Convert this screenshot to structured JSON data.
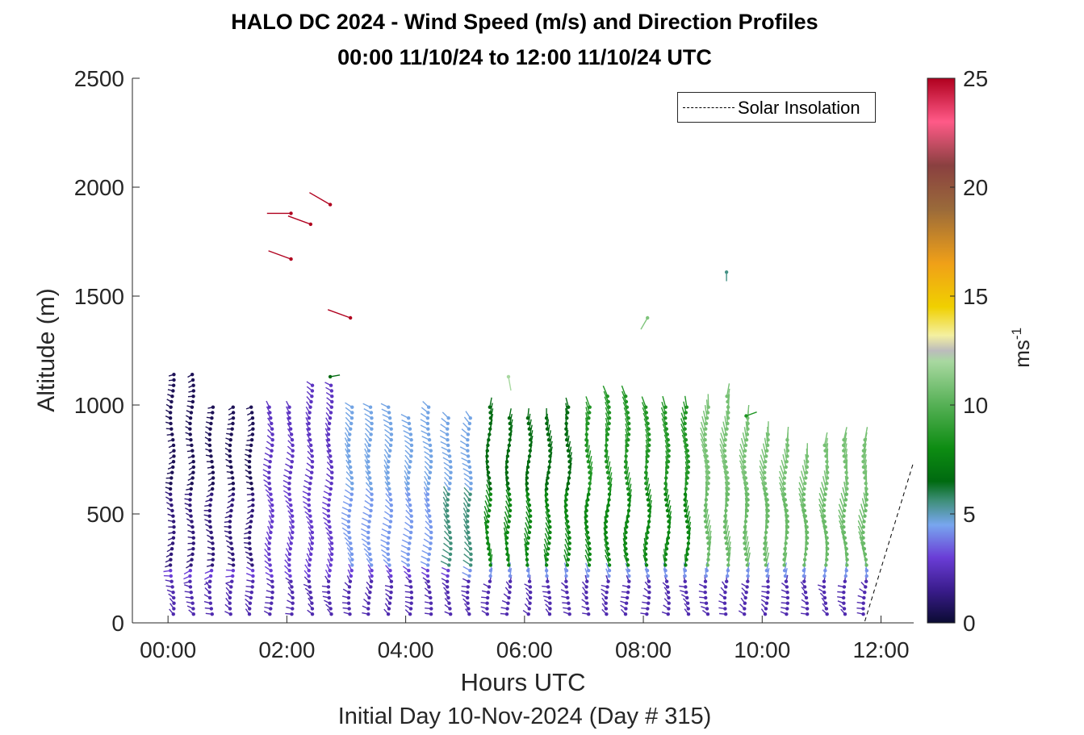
{
  "chart_data": {
    "type": "wind barb profile (arrow plot)",
    "title": "HALO DC 2024 - Wind Speed (m/s) and Direction Profiles",
    "subtitle": "00:00 11/10/24 to 12:00 11/10/24  UTC",
    "xlabel": "Hours UTC",
    "x_sublabel": "Initial Day 10-Nov-2024 (Day # 315)",
    "ylabel": "Altitude (m)",
    "xlim_hours": [
      -0.6,
      12.55
    ],
    "ylim": [
      0,
      2500
    ],
    "x_ticks": [
      {
        "hour": 0,
        "label": "00:00"
      },
      {
        "hour": 2,
        "label": "02:00"
      },
      {
        "hour": 4,
        "label": "04:00"
      },
      {
        "hour": 6,
        "label": "06:00"
      },
      {
        "hour": 8,
        "label": "08:00"
      },
      {
        "hour": 10,
        "label": "10:00"
      },
      {
        "hour": 12,
        "label": "12:00"
      }
    ],
    "y_ticks": [
      0,
      500,
      1000,
      1500,
      2000,
      2500
    ],
    "colorbar": {
      "label": "ms",
      "label_exponent": "-1",
      "range": [
        0,
        25
      ],
      "ticks": [
        0,
        5,
        10,
        15,
        20,
        25
      ],
      "colormap_stops": [
        {
          "value": 0,
          "color": "#0b0b33"
        },
        {
          "value": 1.5,
          "color": "#3a1c8c"
        },
        {
          "value": 3,
          "color": "#6a3dd6"
        },
        {
          "value": 4.5,
          "color": "#78a6ef"
        },
        {
          "value": 5.6,
          "color": "#3f8f7a"
        },
        {
          "value": 6.5,
          "color": "#006a10"
        },
        {
          "value": 8,
          "color": "#0d8c12"
        },
        {
          "value": 10,
          "color": "#55b055"
        },
        {
          "value": 12,
          "color": "#a8d8a0"
        },
        {
          "value": 12.5,
          "color": "#bcbcbc"
        },
        {
          "value": 13.2,
          "color": "#f4f0a0"
        },
        {
          "value": 14.5,
          "color": "#f0d000"
        },
        {
          "value": 16.5,
          "color": "#f0a018"
        },
        {
          "value": 19,
          "color": "#9a6a3a"
        },
        {
          "value": 21,
          "color": "#8a4040"
        },
        {
          "value": 23,
          "color": "#ff5a88"
        },
        {
          "value": 25,
          "color": "#b0001e"
        }
      ]
    },
    "legend": {
      "entries": [
        {
          "label": "Solar Insolation",
          "style": "dashed",
          "color": "#000000"
        }
      ],
      "placement": "top-right"
    },
    "solar_insolation": {
      "x": [
        -0.6,
        11.72,
        12.55
      ],
      "y": [
        0,
        0,
        740
      ]
    },
    "profile_times_hours": [
      0.07,
      0.4,
      0.73,
      1.07,
      1.4,
      1.73,
      2.07,
      2.4,
      2.73,
      3.07,
      3.4,
      3.73,
      4.07,
      4.4,
      4.73,
      5.07,
      5.4,
      5.73,
      6.07,
      6.4,
      6.73,
      7.07,
      7.4,
      7.73,
      8.07,
      8.4,
      8.73,
      9.07,
      9.4,
      9.73,
      10.07,
      10.4,
      10.73,
      11.07,
      11.4,
      11.73
    ],
    "profile_top_altitudes_m": [
      1160,
      1140,
      1000,
      1000,
      1000,
      1000,
      1000,
      1090,
      1090,
      1000,
      1000,
      1000,
      950,
      1000,
      950,
      950,
      1000,
      950,
      950,
      950,
      1000,
      1000,
      1040,
      1040,
      1000,
      1000,
      1000,
      1000,
      1040,
      950,
      870,
      850,
      780,
      820,
      860,
      850
    ],
    "altitude_step_m": 25,
    "layer_speeds_m_per_s": [
      {
        "below_m": 200,
        "speed_by_period": [
          {
            "until_hour": 12,
            "speed": 2.2
          }
        ]
      },
      {
        "below_m": 250,
        "speed_by_period": [
          {
            "until_hour": 5,
            "speed": 3.0
          },
          {
            "until_hour": 12,
            "speed": 4.2
          }
        ]
      },
      {
        "below_m": 600,
        "speed_by_period": [
          {
            "until_hour": 1.5,
            "speed": 1.2
          },
          {
            "until_hour": 3,
            "speed": 2.8
          },
          {
            "until_hour": 4.5,
            "speed": 4.3
          },
          {
            "until_hour": 5.3,
            "speed": 5.6
          },
          {
            "until_hour": 9,
            "speed": 7.8
          },
          {
            "until_hour": 12,
            "speed": 10.5
          }
        ]
      },
      {
        "below_m": 2500,
        "speed_by_period": [
          {
            "until_hour": 1.5,
            "speed": 0.6
          },
          {
            "until_hour": 3,
            "speed": 2.6
          },
          {
            "until_hour": 5.3,
            "speed": 4.6
          },
          {
            "until_hour": 7,
            "speed": 6.5
          },
          {
            "until_hour": 9,
            "speed": 8.5
          },
          {
            "until_hour": 12,
            "speed": 10.8
          }
        ]
      }
    ],
    "isolated_barbs": [
      {
        "hour": 2.07,
        "alt": 1880,
        "speed": 25,
        "dir_deg": 270
      },
      {
        "hour": 2.4,
        "alt": 1830,
        "speed": 25,
        "dir_deg": 290
      },
      {
        "hour": 2.73,
        "alt": 1920,
        "speed": 25,
        "dir_deg": 300
      },
      {
        "hour": 2.07,
        "alt": 1670,
        "speed": 25,
        "dir_deg": 290
      },
      {
        "hour": 3.07,
        "alt": 1400,
        "speed": 25,
        "dir_deg": 290
      },
      {
        "hour": 2.73,
        "alt": 1130,
        "speed": 6.5,
        "dir_deg": 80
      },
      {
        "hour": 5.73,
        "alt": 1130,
        "speed": 12,
        "dir_deg": 170
      },
      {
        "hour": 8.07,
        "alt": 1400,
        "speed": 11,
        "dir_deg": 210
      },
      {
        "hour": 9.4,
        "alt": 1610,
        "speed": 5.5,
        "dir_deg": 180
      },
      {
        "hour": 9.73,
        "alt": 950,
        "speed": 8.5,
        "dir_deg": 70
      }
    ]
  }
}
